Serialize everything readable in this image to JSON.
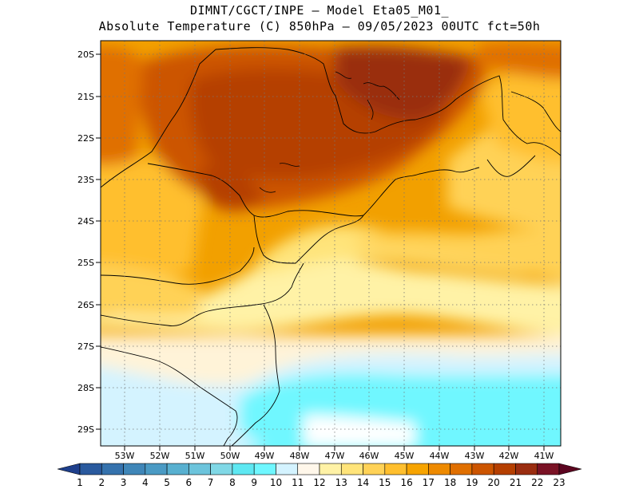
{
  "header": {
    "line1": "DIMNT/CGCT/INPE —  Model Eta05_M01_",
    "line2": "Absolute Temperature (C) 850hPa —  09/05/2023 00UTC fct=50h"
  },
  "axes": {
    "lat_labels": [
      "20S",
      "21S",
      "22S",
      "23S",
      "24S",
      "25S",
      "26S",
      "27S",
      "28S",
      "29S"
    ],
    "lon_labels": [
      "53W",
      "52W",
      "51W",
      "50W",
      "49W",
      "48W",
      "47W",
      "46W",
      "45W",
      "44W",
      "43W",
      "42W",
      "41W"
    ]
  },
  "colorbar": {
    "labels": [
      "1",
      "2",
      "3",
      "4",
      "5",
      "6",
      "7",
      "8",
      "9",
      "10",
      "11",
      "12",
      "13",
      "14",
      "15",
      "16",
      "17",
      "18",
      "19",
      "20",
      "21",
      "22",
      "23"
    ],
    "colors": [
      "#1e3f8c",
      "#2a5a9e",
      "#3572ad",
      "#3f86b8",
      "#4a9ac4",
      "#58b0d0",
      "#6cc4dc",
      "#80d8e6",
      "#5ee8f2",
      "#6ff7ff",
      "#d4f3ff",
      "#fff7ea",
      "#fff2a6",
      "#ffe47a",
      "#ffd257",
      "#ffbf2e",
      "#f7a400",
      "#ee8a00",
      "#e06f00",
      "#cc5500",
      "#b53f00",
      "#9a2d10",
      "#7a1225",
      "#5c0520"
    ]
  }
}
